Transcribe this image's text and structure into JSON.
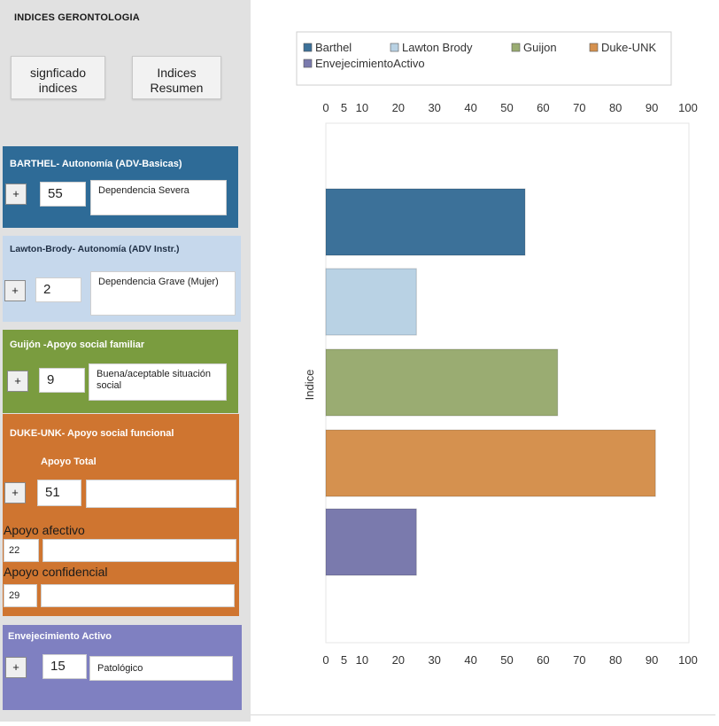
{
  "app_title": "INDICES GERONTOLOGIA",
  "buttons": {
    "significado": [
      "signficado",
      "indices"
    ],
    "resumen": [
      "Indices",
      "Resumen"
    ]
  },
  "panels": {
    "barthel": {
      "title": "BARTHEL- Autonomía (ADV-Basicas)",
      "plus": "+",
      "value": "55",
      "result": "Dependencia Severa",
      "color": "#2e6b97"
    },
    "lawton": {
      "title": "Lawton-Brody- Autonomía (ADV Instr.)",
      "plus": "+",
      "value": "2",
      "result": "Dependencia Grave (Mujer)",
      "color": "#c6d8ec"
    },
    "guijon": {
      "title": "Guijón -Apoyo social familiar",
      "plus": "+",
      "value": "9",
      "result": "Buena/aceptable situación social",
      "color": "#7a9c3f"
    },
    "duke": {
      "title": "DUKE-UNK- Apoyo social funcional",
      "total_label": "Apoyo Total",
      "plus": "+",
      "value": "51",
      "result": "",
      "afectivo_label": "Apoyo afectivo",
      "afectivo_value": "22",
      "afectivo_result": "",
      "confidencial_label": "Apoyo confidencial",
      "confidencial_value": "29",
      "confidencial_result": "",
      "color": "#cf7530"
    },
    "envejecimiento": {
      "title": "Envejecimiento Activo",
      "plus": "+",
      "value": "15",
      "result": "Patológico",
      "color": "#7f80c1"
    }
  },
  "chart_data": {
    "type": "bar",
    "orientation": "horizontal",
    "title": "",
    "ylabel": "Indice",
    "xlabel": "",
    "xlim": [
      0,
      100
    ],
    "ticks": [
      "0",
      "5",
      "10",
      "20",
      "30",
      "40",
      "50",
      "60",
      "70",
      "80",
      "90",
      "100"
    ],
    "tick_values": [
      0,
      5,
      10,
      20,
      30,
      40,
      50,
      60,
      70,
      80,
      90,
      100
    ],
    "legend_position": "top",
    "grid": false,
    "series": [
      {
        "name": "Barthel",
        "value": 55,
        "color": "#3c7199"
      },
      {
        "name": "Lawton Brody",
        "value": 25,
        "color": "#b9d2e4"
      },
      {
        "name": "Guijon",
        "value": 64,
        "color": "#9aac72"
      },
      {
        "name": "Duke-UNK",
        "value": 91,
        "color": "#d5914f"
      },
      {
        "name": "EnvejecimientoActivo",
        "value": 25,
        "color": "#7a7aad"
      }
    ]
  }
}
